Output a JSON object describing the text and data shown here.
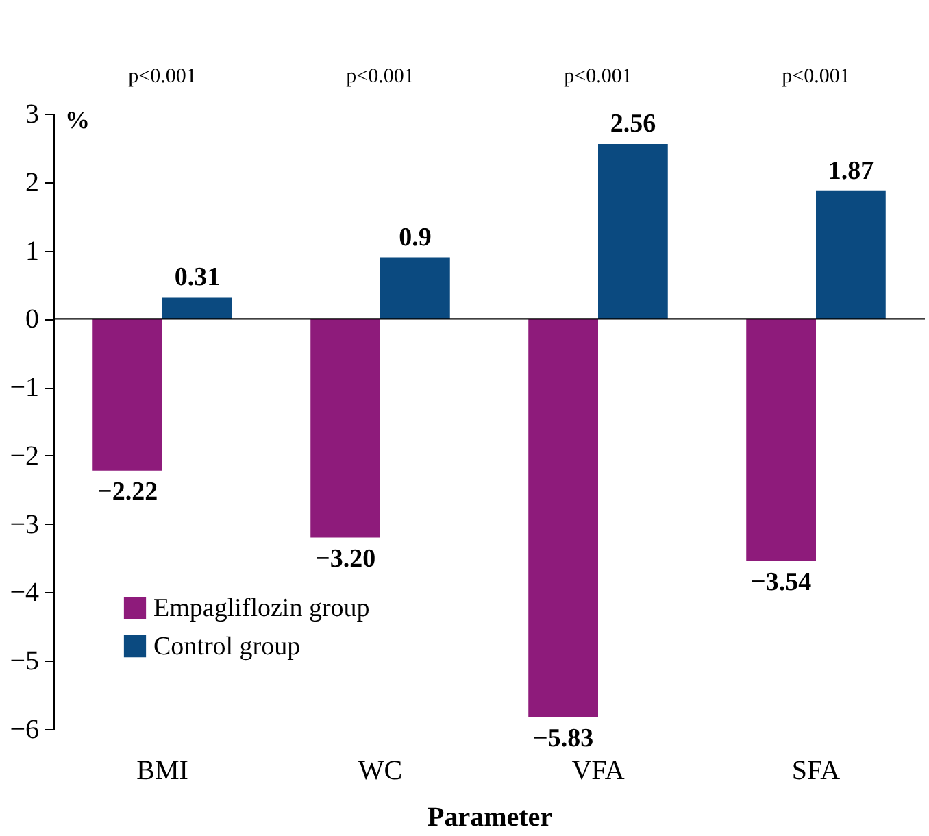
{
  "chart_data": {
    "type": "bar",
    "ylabel": "%",
    "xlabel": "Parameter",
    "categories": [
      "BMI",
      "WC",
      "VFA",
      "SFA"
    ],
    "series": [
      {
        "name": "Empagliflozin group",
        "color": "#8e1b7b",
        "values": [
          -2.22,
          -3.2,
          -5.83,
          -3.54
        ],
        "value_labels": [
          "−2.22",
          "−3.20",
          "−5.83",
          "−3.54"
        ]
      },
      {
        "name": "Control group",
        "color": "#0b4a80",
        "values": [
          0.31,
          0.9,
          2.56,
          1.87
        ],
        "value_labels": [
          "0.31",
          "0.9",
          "2.56",
          "1.87"
        ]
      }
    ],
    "ylim": [
      -6,
      3
    ],
    "yticks": [
      -6,
      -5,
      -4,
      -3,
      -2,
      -1,
      0,
      1,
      2,
      3
    ],
    "annotations": [
      "p<0.001",
      "p<0.001",
      "p<0.001",
      "p<0.001"
    ],
    "legend": "bottom left"
  }
}
